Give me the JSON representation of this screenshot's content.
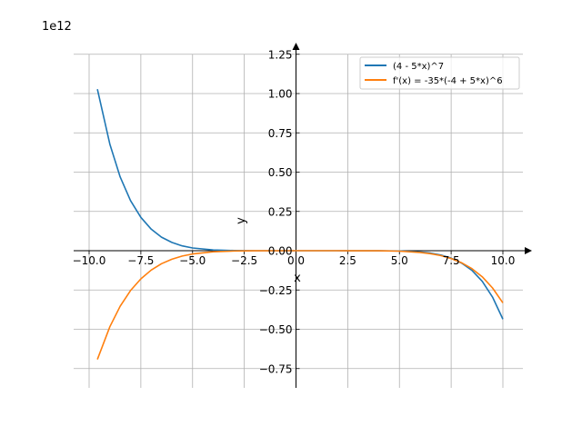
{
  "chart_data": {
    "type": "line",
    "title": "",
    "xlabel": "x",
    "ylabel": "y",
    "y_offset_label": "1e12",
    "xlim": [
      -11,
      11
    ],
    "ylim": [
      -0.875,
      1.3
    ],
    "y_scale_note": "values in units of 1e12",
    "grid": true,
    "legend_position": "top-right",
    "x_ticks": [
      -10,
      -7.5,
      -5,
      -2.5,
      0,
      2.5,
      5,
      7.5,
      10
    ],
    "x_tick_labels": [
      "−10.0",
      "−7.5",
      "−5.0",
      "−2.5",
      "0.0",
      "2.5",
      "5.0",
      "7.5",
      "10.0"
    ],
    "y_ticks": [
      -0.75,
      -0.5,
      -0.25,
      0,
      0.25,
      0.5,
      0.75,
      1.0,
      1.25
    ],
    "y_tick_labels": [
      "−0.75",
      "−0.50",
      "−0.25",
      "0.00",
      "0.25",
      "0.50",
      "0.75",
      "1.00",
      "1.25"
    ],
    "x": [
      -9.6,
      -9,
      -8.5,
      -8,
      -7.5,
      -7,
      -6.5,
      -6,
      -5.5,
      -5,
      -4,
      -3,
      -2,
      0,
      2,
      4,
      5,
      6,
      6.5,
      7,
      7.5,
      8,
      8.5,
      9,
      9.5,
      10
    ],
    "series": [
      {
        "name": "(4 - 5*x)^7",
        "color": "#1f77b4",
        "values": [
          1.028,
          0.678,
          0.47,
          0.319,
          0.212,
          0.137,
          0.0863,
          0.0525,
          0.0308,
          0.0172,
          0.0046,
          0.0009,
          0.0001,
          0.0,
          0.0,
          -0.0003,
          -0.0018,
          -0.008,
          -0.0153,
          -0.0275,
          -0.0474,
          -0.0784,
          -0.125,
          -0.195,
          -0.295,
          -0.436
        ]
      },
      {
        "name": "f'(x) = -35*(-4 + 5*x)^6",
        "color": "#ff7f0e",
        "values": [
          -0.692,
          -0.484,
          -0.354,
          -0.254,
          -0.179,
          -0.123,
          -0.0828,
          -0.0541,
          -0.0342,
          -0.0208,
          -0.0067,
          -0.0016,
          -0.0003,
          0.0,
          0.0,
          -0.0006,
          -0.003,
          -0.0108,
          -0.0188,
          -0.0311,
          -0.0495,
          -0.0762,
          -0.114,
          -0.166,
          -0.237,
          -0.332
        ]
      }
    ]
  }
}
